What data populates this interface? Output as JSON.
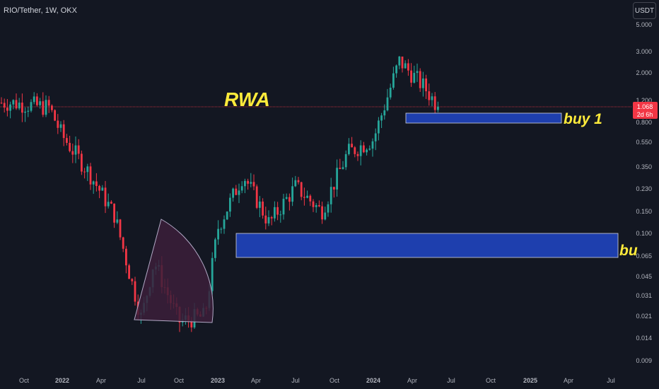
{
  "header": {
    "symbol": "RIO/Tether, 1W, OKX",
    "currency_button": "USDT"
  },
  "price_axis": {
    "ticks": [
      "5.000",
      "3.000",
      "2.000",
      "1.200",
      "0.800",
      "0.550",
      "0.350",
      "0.230",
      "0.150",
      "0.100",
      "0.065",
      "0.045",
      "0.031",
      "0.021",
      "0.014",
      "0.009"
    ],
    "current_price": "1.068",
    "countdown": "2d 6h",
    "current_price_color": "#f23645"
  },
  "time_axis": {
    "labels": [
      "Oct",
      "2022",
      "Apr",
      "Jul",
      "Oct",
      "2023",
      "Apr",
      "Jul",
      "Oct",
      "2024",
      "Apr",
      "Jul",
      "Oct",
      "2025",
      "Apr",
      "Jul"
    ],
    "bold_labels": [
      "2022",
      "2023",
      "2024",
      "2025"
    ]
  },
  "annotations": {
    "rwa": "RWA",
    "buy1": "buy 1",
    "buy2": "bu"
  },
  "colors": {
    "background": "#131722",
    "up": "#26a69a",
    "down": "#f23645",
    "zone_fill": "#1e3fae",
    "annotation_text": "#ffeb3b",
    "arc_fill": "#3c1f3a"
  },
  "chart_data": {
    "type": "candlestick",
    "scale": "log",
    "interval": "1W",
    "yticks": [
      5.0,
      3.0,
      2.0,
      1.2,
      0.8,
      0.55,
      0.35,
      0.23,
      0.15,
      0.1,
      0.065,
      0.045,
      0.031,
      0.021,
      0.014,
      0.009
    ],
    "approx_close_path": [
      {
        "date": "2021-09",
        "close": 1.15
      },
      {
        "date": "2021-12",
        "close": 1.05
      },
      {
        "date": "2022-01",
        "close": 0.62
      },
      {
        "date": "2022-03",
        "close": 0.32
      },
      {
        "date": "2022-05",
        "close": 0.14
      },
      {
        "date": "2022-07",
        "close": 0.02
      },
      {
        "date": "2022-08",
        "close": 0.06
      },
      {
        "date": "2022-10",
        "close": 0.019
      },
      {
        "date": "2022-12",
        "close": 0.021
      },
      {
        "date": "2023-01",
        "close": 0.11
      },
      {
        "date": "2023-03",
        "close": 0.3
      },
      {
        "date": "2023-05",
        "close": 0.12
      },
      {
        "date": "2023-07",
        "close": 0.24
      },
      {
        "date": "2023-09",
        "close": 0.15
      },
      {
        "date": "2023-11",
        "close": 0.45
      },
      {
        "date": "2024-01",
        "close": 0.58
      },
      {
        "date": "2024-03",
        "close": 2.5
      },
      {
        "date": "2024-05",
        "close": 1.5
      },
      {
        "date": "2024-06",
        "close": 1.068
      }
    ],
    "last_price": 1.068,
    "zones": [
      {
        "label": "buy 1",
        "from_date": "2024-03",
        "to_date": "2025-03",
        "low": 0.78,
        "high": 0.92
      },
      {
        "label": "bu",
        "from_date": "2023-02",
        "to_date": "2025-08",
        "low": 0.063,
        "high": 0.1
      }
    ]
  }
}
